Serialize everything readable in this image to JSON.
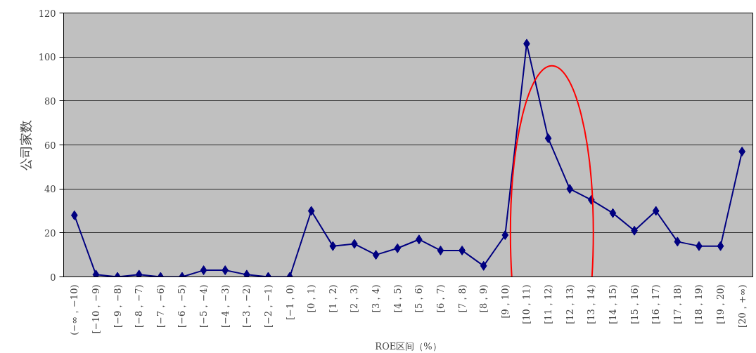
{
  "chart_data": {
    "type": "line",
    "xlabel": "ROE区间（%）",
    "ylabel": "公司家数",
    "categories": [
      "(−∞，−10)",
      "[−10，−9)",
      "[−9，−8)",
      "[−8，−7)",
      "[−7，−6)",
      "[−6，−5)",
      "[−5，−4)",
      "[−4，−3)",
      "[−3，−2)",
      "[−2，−1)",
      "[−1，0)",
      "[0，1)",
      "[1，2)",
      "[2，3)",
      "[3，4)",
      "[4，5)",
      "[5，6)",
      "[6，7)",
      "[7，8)",
      "[8，9)",
      "[9，10)",
      "[10，11)",
      "[11，12)",
      "[12，13)",
      "[13，14)",
      "[14，15)",
      "[15，16)",
      "[16，17)",
      "[17，18)",
      "[18，19)",
      "[19，20)",
      "[20，+∞)"
    ],
    "series": [
      {
        "color": "#000080",
        "values": [
          28,
          1,
          0,
          1,
          0,
          0,
          3,
          3,
          1,
          0,
          0,
          30,
          14,
          15,
          10,
          13,
          17,
          12,
          12,
          5,
          19,
          106,
          63,
          40,
          35,
          29,
          21,
          30,
          16,
          14,
          14,
          57
        ]
      }
    ],
    "ylim": [
      0,
      120
    ],
    "yticks": [
      0,
      20,
      40,
      60,
      80,
      100,
      120
    ],
    "grid": "y",
    "marker": "diamond"
  }
}
